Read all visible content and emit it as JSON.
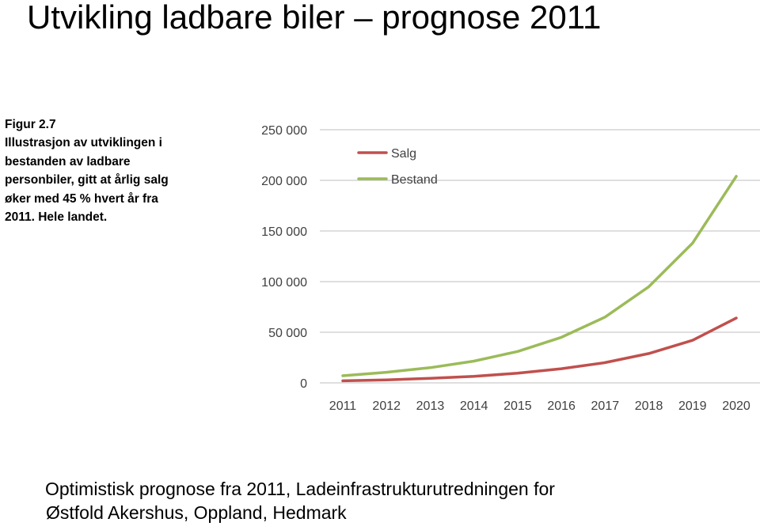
{
  "title": "Utvikling ladbare biler – prognose 2011",
  "caption": {
    "lines": [
      "Figur 2.7",
      "Illustrasjon av utviklingen i",
      "bestanden av ladbare",
      "personbiler, gitt at årlig salg",
      "øker med 45 % hvert år fra",
      "2011. Hele landet."
    ]
  },
  "footer": {
    "lines": [
      "Optimistisk prognose fra 2011, Ladeinfrastrukturutredningen for",
      "Østfold Akershus, Oppland, Hedmark"
    ]
  },
  "chart_data": {
    "type": "line",
    "x": [
      "2011",
      "2012",
      "2013",
      "2014",
      "2015",
      "2016",
      "2017",
      "2018",
      "2019",
      "2020"
    ],
    "ylim": [
      0,
      250000
    ],
    "yticks": [
      0,
      50000,
      100000,
      150000,
      200000,
      250000
    ],
    "ytick_labels": [
      "0",
      "50 000",
      "100 000",
      "150 000",
      "200 000",
      "250 000"
    ],
    "grid": true,
    "legend": "top-left",
    "series": [
      {
        "name": "Salg",
        "color": "#c0504d",
        "values": [
          2000,
          3000,
          4500,
          6500,
          9500,
          14000,
          20000,
          29000,
          42000,
          64000
        ]
      },
      {
        "name": "Bestand",
        "color": "#9bbb59",
        "values": [
          7000,
          10500,
          15000,
          21500,
          31000,
          45000,
          65000,
          95000,
          138000,
          204000
        ]
      }
    ]
  }
}
